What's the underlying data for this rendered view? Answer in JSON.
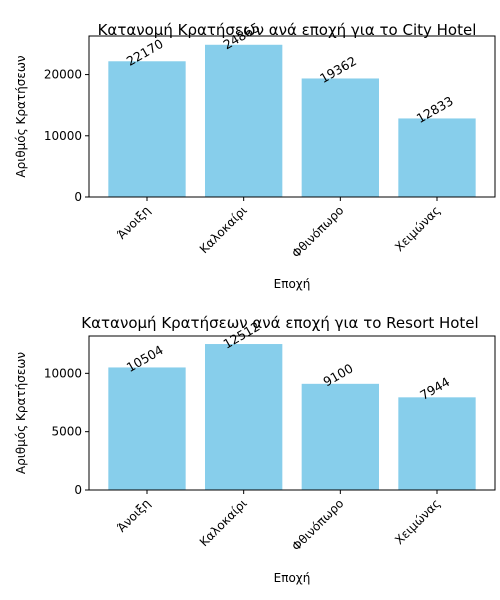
{
  "chart_data": [
    {
      "type": "bar",
      "title": "Κατανομή Κρατήσεων ανά εποχή για το City Hotel",
      "xlabel": "Εποχή",
      "ylabel": "Αριθμός Κρατήσεων",
      "categories": [
        "Άνοιξη",
        "Καλοκαίρι",
        "Φθινόπωρο",
        "Χειμώνας"
      ],
      "values": [
        22170,
        24865,
        19362,
        12833
      ],
      "ylim": [
        0,
        26300
      ],
      "yticks": [
        0,
        10000,
        20000
      ],
      "bar_color": "#87ceeb",
      "grid": false,
      "legend": "none"
    },
    {
      "type": "bar",
      "title": "Κατανομή Κρατήσεων ανά εποχή για το Resort Hotel",
      "xlabel": "Εποχή",
      "ylabel": "Αριθμός Κρατήσεων",
      "categories": [
        "Άνοιξη",
        "Καλοκαίρι",
        "Φθινόπωρο",
        "Χειμώνας"
      ],
      "values": [
        10504,
        12512,
        9100,
        7944
      ],
      "ylim": [
        0,
        13200
      ],
      "yticks": [
        0,
        5000,
        10000
      ],
      "bar_color": "#87ceeb",
      "grid": false,
      "legend": "none"
    }
  ]
}
